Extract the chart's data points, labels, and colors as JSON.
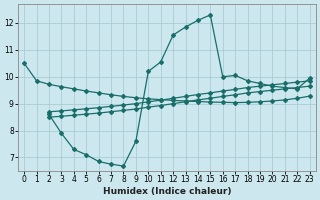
{
  "xlabel": "Humidex (Indice chaleur)",
  "background_color": "#cce8ee",
  "line_color": "#1a6e6a",
  "grid_color": "#aaccd4",
  "xlim": [
    -0.5,
    23.5
  ],
  "ylim": [
    6.5,
    12.7
  ],
  "xticks": [
    0,
    1,
    2,
    3,
    4,
    5,
    6,
    7,
    8,
    9,
    10,
    11,
    12,
    13,
    14,
    15,
    16,
    17,
    18,
    19,
    20,
    21,
    22,
    23
  ],
  "yticks": [
    7,
    8,
    9,
    10,
    11,
    12
  ],
  "curve1_x": [
    0,
    1,
    2,
    3,
    4,
    5,
    6,
    7,
    8,
    9,
    10,
    11,
    12,
    13,
    14,
    15,
    16,
    17,
    18,
    19,
    20,
    21,
    22,
    23
  ],
  "curve1_y": [
    10.5,
    9.85,
    9.72,
    9.63,
    9.55,
    9.47,
    9.4,
    9.33,
    9.27,
    9.22,
    9.18,
    9.15,
    9.12,
    9.1,
    9.08,
    9.06,
    9.05,
    9.04,
    9.05,
    9.07,
    9.1,
    9.14,
    9.2,
    9.28
  ],
  "curve2_x": [
    2,
    3,
    4,
    5,
    6,
    7,
    8,
    9,
    10,
    11,
    12,
    13,
    14,
    15,
    16,
    17,
    18,
    19,
    20,
    21,
    22,
    23
  ],
  "curve2_y": [
    8.6,
    7.9,
    7.3,
    7.1,
    6.85,
    6.75,
    6.68,
    7.6,
    10.2,
    10.55,
    11.55,
    11.85,
    12.1,
    12.3,
    10.0,
    10.05,
    9.85,
    9.75,
    9.65,
    9.6,
    9.55,
    9.95
  ],
  "curve3_x": [
    2,
    3,
    4,
    5,
    6,
    7,
    8,
    9,
    10,
    11,
    12,
    13,
    14,
    15,
    16,
    17,
    18,
    19,
    20,
    21,
    22,
    23
  ],
  "curve3_y": [
    8.5,
    8.53,
    8.57,
    8.61,
    8.65,
    8.7,
    8.75,
    8.8,
    8.87,
    8.93,
    9.0,
    9.07,
    9.14,
    9.2,
    9.27,
    9.33,
    9.4,
    9.45,
    9.5,
    9.55,
    9.6,
    9.65
  ],
  "curve4_x": [
    2,
    3,
    4,
    5,
    6,
    7,
    8,
    9,
    10,
    11,
    12,
    13,
    14,
    15,
    16,
    17,
    18,
    19,
    20,
    21,
    22,
    23
  ],
  "curve4_y": [
    8.7,
    8.73,
    8.77,
    8.81,
    8.85,
    8.9,
    8.95,
    9.0,
    9.07,
    9.13,
    9.2,
    9.27,
    9.34,
    9.4,
    9.47,
    9.53,
    9.6,
    9.65,
    9.7,
    9.75,
    9.8,
    9.85
  ]
}
